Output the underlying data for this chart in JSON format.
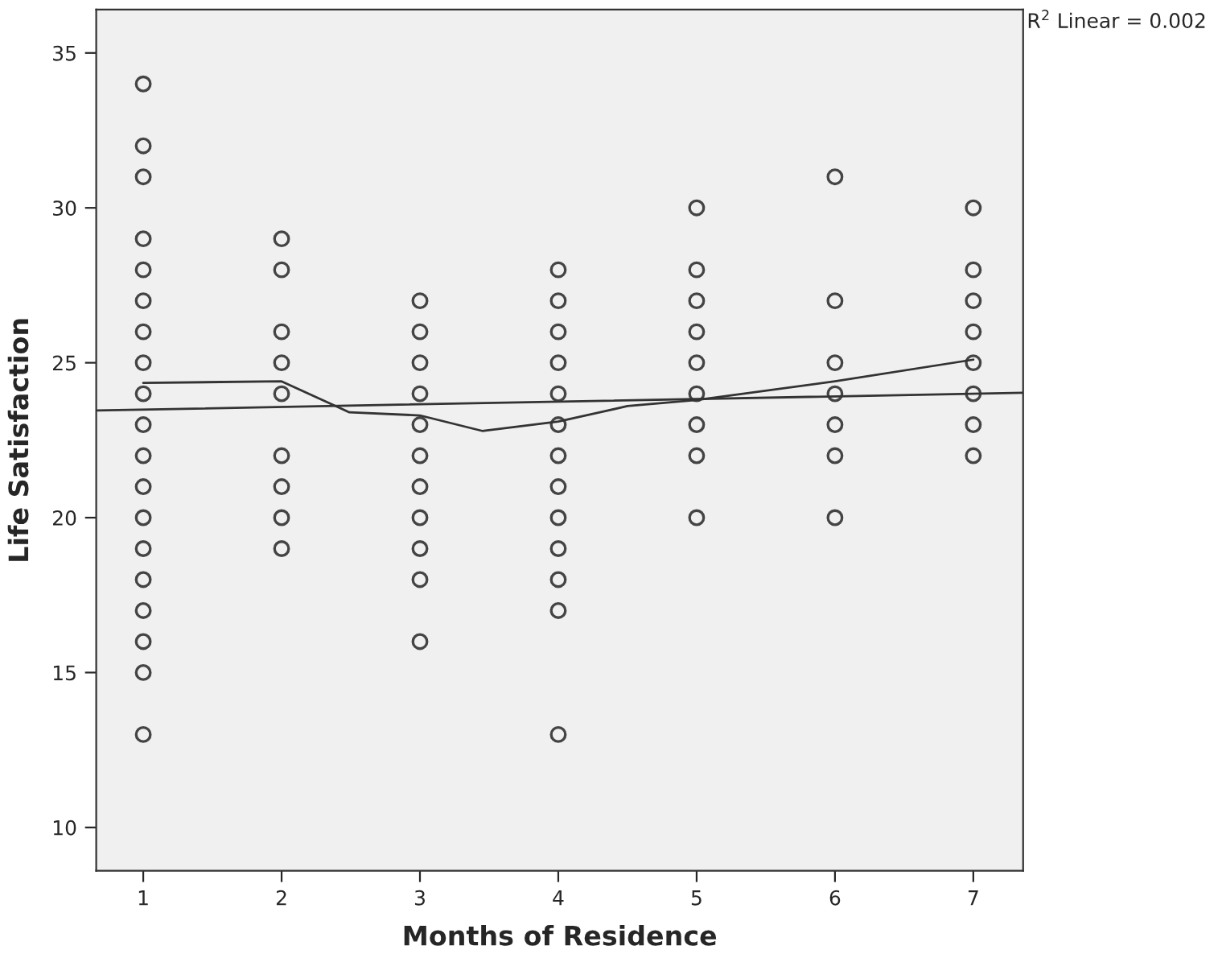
{
  "chart_data": {
    "type": "scatter",
    "xlabel": "Months of Residence",
    "ylabel": "Life Satisfaction",
    "annotations": [
      "R$^{2}$ Linear = 0.002"
    ],
    "xlim": [
      0.66,
      7.36
    ],
    "xticks": [
      1,
      2,
      3,
      4,
      5,
      6,
      7
    ],
    "ylim": [
      8.6,
      36.4
    ],
    "yticks": [
      10,
      15,
      20,
      25,
      30,
      35
    ],
    "grid": false,
    "series": [
      {
        "marker": "circle",
        "color": "#444444",
        "x": [
          1,
          1,
          1,
          1,
          1,
          1,
          1,
          1,
          1,
          1,
          1,
          1,
          1,
          1,
          1,
          1,
          1,
          1,
          1,
          2,
          2,
          2,
          2,
          2,
          2,
          2,
          2,
          2,
          3,
          3,
          3,
          3,
          3,
          3,
          3,
          3,
          3,
          3,
          3,
          4,
          4,
          4,
          4,
          4,
          4,
          4,
          4,
          4,
          4,
          4,
          4,
          4,
          5,
          5,
          5,
          5,
          5,
          5,
          5,
          5,
          5,
          6,
          6,
          6,
          6,
          6,
          6,
          6,
          7,
          7,
          7,
          7,
          7,
          7,
          7,
          7
        ],
        "values": [
          34,
          32,
          31,
          29,
          28,
          27,
          26,
          25,
          24,
          23,
          22,
          21,
          20,
          19,
          18,
          17,
          16,
          15,
          13,
          29,
          28,
          26,
          25,
          24,
          22,
          21,
          20,
          19,
          27,
          26,
          25,
          24,
          23,
          22,
          21,
          20,
          19,
          18,
          16,
          28,
          27,
          26,
          25,
          24,
          23,
          22,
          21,
          20,
          19,
          18,
          17,
          13,
          30,
          28,
          27,
          26,
          25,
          24,
          23,
          22,
          20,
          31,
          27,
          25,
          24,
          23,
          22,
          20,
          30,
          28,
          27,
          26,
          25,
          24,
          23,
          22
        ]
      },
      {
        "type": "line",
        "marker": "none",
        "color": "#333333",
        "line_style": "solid",
        "x": [
          0.66,
          7.36
        ],
        "values": [
          23.46,
          24.03
        ]
      },
      {
        "type": "line",
        "marker": "none",
        "color": "#333333",
        "line_style": "solid",
        "x": [
          1,
          2,
          2.49,
          3,
          3.45,
          4,
          4.5,
          5,
          6,
          7
        ],
        "values": [
          24.35,
          24.4,
          23.4,
          23.3,
          22.8,
          23.1,
          23.6,
          23.8,
          24.4,
          25.1
        ]
      }
    ]
  }
}
